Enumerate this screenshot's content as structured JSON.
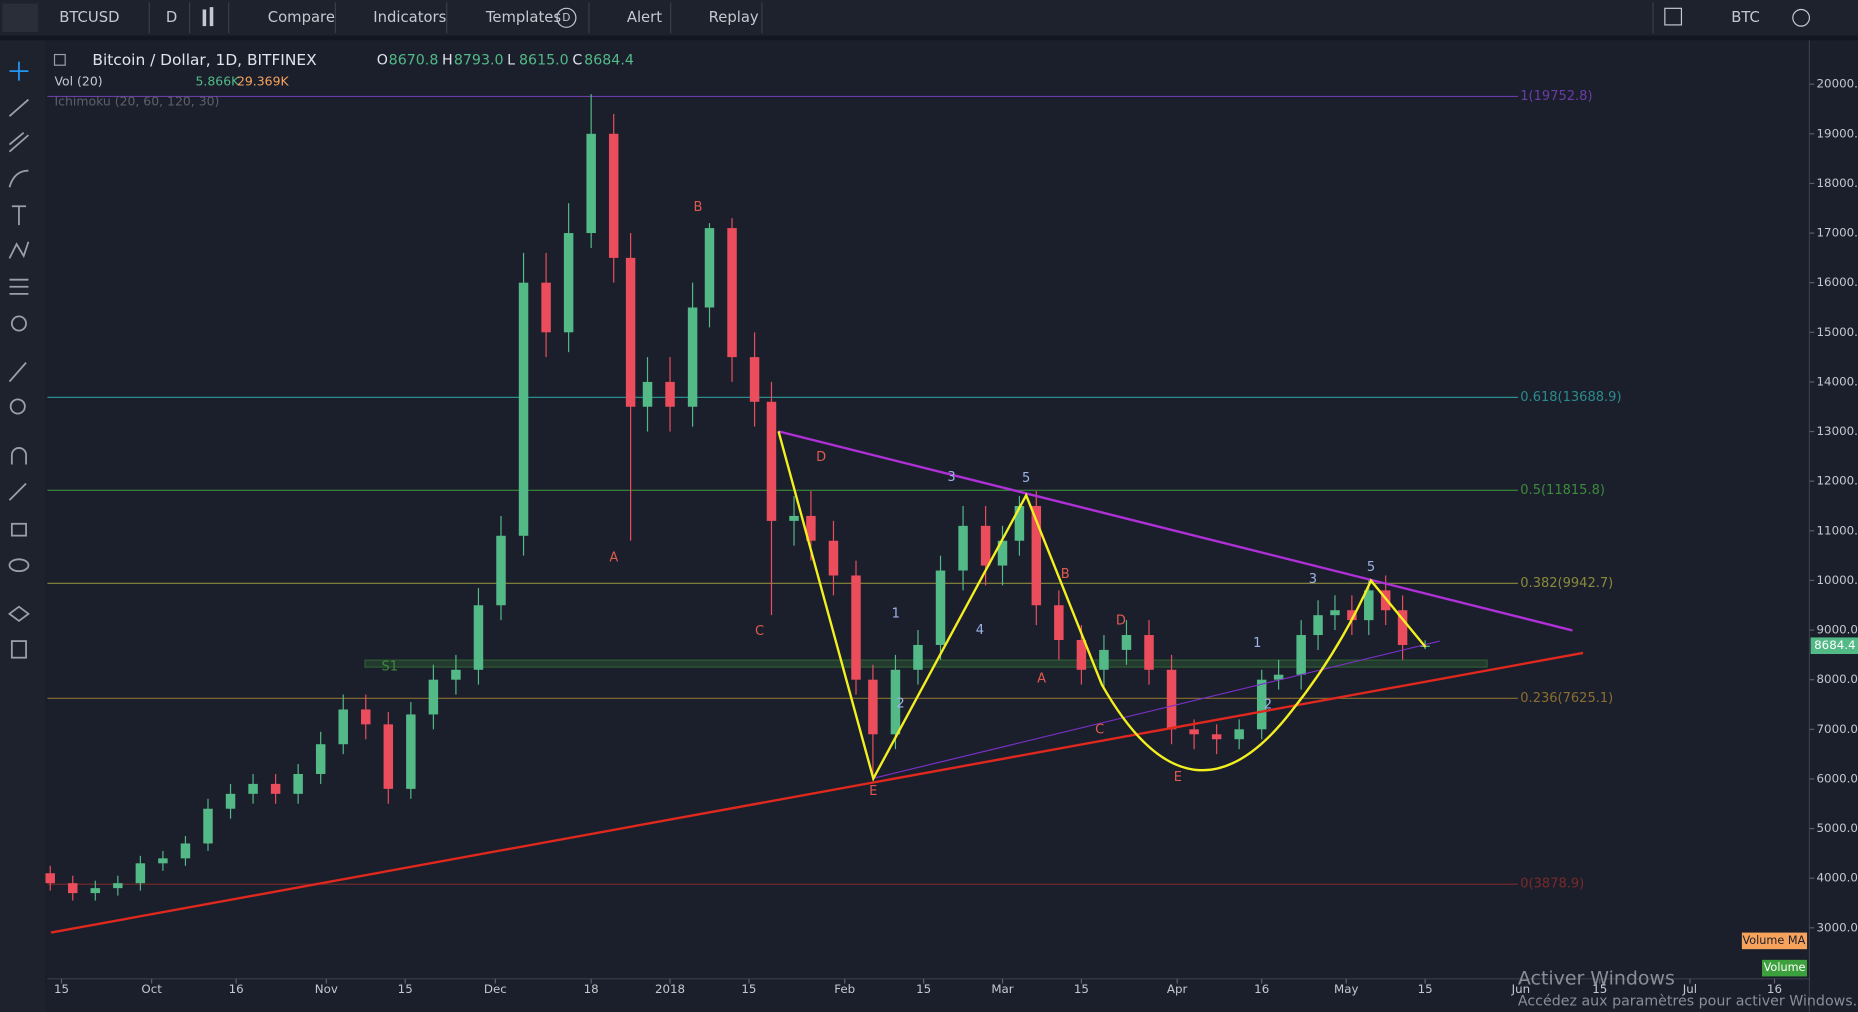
{
  "toolbar": {
    "symbol": "BTCUSD",
    "interval": "D",
    "compare": "Compare",
    "indicators": "Indicators",
    "templates": "Templates",
    "templates_badge": "D",
    "alert": "Alert",
    "replay": "Replay",
    "currency": "BTC"
  },
  "legend": {
    "title": "Bitcoin / Dollar, 1D, BITFINEX",
    "ohlc": [
      {
        "label": "O",
        "value": "8670.8"
      },
      {
        "label": "H",
        "value": "8793.0"
      },
      {
        "label": "L",
        "value": "8615.0"
      },
      {
        "label": "C",
        "value": "8684.4"
      }
    ],
    "volume": "Vol (20)",
    "volume_values": [
      "5.866K",
      "29.369K"
    ],
    "ichimoku": "Ichimoku (20, 60, 120, 30)"
  },
  "chart_data": {
    "type": "candlestick",
    "x": [
      -2,
      2,
      6,
      10,
      14,
      18,
      22,
      26,
      30,
      34,
      38,
      42,
      46,
      50,
      54,
      58,
      62,
      66,
      70,
      74,
      78,
      82,
      86,
      90,
      94,
      98,
      101,
      104,
      108,
      112,
      115,
      119,
      123,
      126,
      130,
      133,
      137,
      141,
      144,
      148,
      152,
      156,
      160,
      164,
      167,
      170,
      173,
      177,
      181,
      185,
      189,
      193,
      197,
      201,
      205,
      209,
      213,
      216,
      220,
      223,
      226,
      229,
      232,
      235,
      238,
      242
    ],
    "open": [
      4100,
      3900,
      3700,
      3800,
      3900,
      4300,
      4400,
      4700,
      5400,
      5700,
      5900,
      5700,
      6100,
      6700,
      7400,
      7100,
      5800,
      7300,
      8000,
      8200,
      9500,
      10900,
      16000,
      15000,
      17000,
      19000,
      16500,
      13500,
      14000,
      13500,
      15500,
      17100,
      14500,
      13600,
      11200,
      11300,
      10800,
      10100,
      8000,
      6900,
      8200,
      8700,
      10200,
      11100,
      10300,
      10800,
      11500,
      9500,
      8800,
      8200,
      8600,
      8900,
      8200,
      7000,
      6900,
      6800,
      7000,
      8000,
      8100,
      8900,
      9300,
      9400,
      9200,
      9800,
      9400,
      8670.8
    ],
    "high": [
      4250,
      4050,
      3950,
      4050,
      4450,
      4550,
      4850,
      5600,
      5900,
      6100,
      6100,
      6300,
      6950,
      7700,
      7700,
      7350,
      7550,
      8300,
      8500,
      9850,
      11300,
      16600,
      16600,
      17600,
      19800,
      19400,
      17000,
      14500,
      14500,
      16000,
      17200,
      17300,
      15000,
      14000,
      11700,
      11800,
      11200,
      10400,
      8300,
      8500,
      9000,
      10500,
      11500,
      11500,
      11100,
      11700,
      11800,
      9800,
      9100,
      8900,
      9200,
      9200,
      8500,
      7200,
      7100,
      7200,
      8200,
      8400,
      9200,
      9600,
      9700,
      9700,
      10000,
      10100,
      9700,
      8793
    ],
    "low": [
      3750,
      3550,
      3550,
      3650,
      3750,
      4150,
      4250,
      4550,
      5200,
      5500,
      5500,
      5500,
      5900,
      6500,
      6800,
      5500,
      5600,
      7000,
      7700,
      7900,
      9200,
      10500,
      14500,
      14600,
      16700,
      16000,
      10800,
      13000,
      13000,
      13100,
      15100,
      14000,
      13100,
      9300,
      10700,
      10400,
      9700,
      7700,
      6000,
      6600,
      7900,
      8400,
      9800,
      9900,
      9900,
      10500,
      9100,
      8400,
      7900,
      7800,
      8300,
      7900,
      6700,
      6600,
      6500,
      6600,
      6800,
      7800,
      7800,
      8600,
      9000,
      8900,
      8900,
      9100,
      8400,
      8615
    ],
    "close": [
      3900,
      3700,
      3800,
      3900,
      4300,
      4400,
      4700,
      5400,
      5700,
      5900,
      5700,
      6100,
      6700,
      7400,
      7100,
      5800,
      7300,
      8000,
      8200,
      9500,
      10900,
      16000,
      15000,
      17000,
      19000,
      16500,
      13500,
      14000,
      13500,
      15500,
      17100,
      14500,
      13600,
      11200,
      11300,
      10800,
      10100,
      8000,
      6900,
      8200,
      8700,
      10200,
      11100,
      10300,
      10800,
      11500,
      9500,
      8800,
      8200,
      8600,
      8900,
      8200,
      7000,
      6900,
      6800,
      7000,
      8000,
      8100,
      8900,
      9300,
      9400,
      9200,
      9800,
      9400,
      8700,
      8684.4
    ],
    "up_color": "#53b987",
    "down_color": "#eb4d5c",
    "xlim": [
      -2.5,
      310.2
    ],
    "ylim": [
      1973,
      20836
    ],
    "xticks": [
      {
        "value": 0,
        "label": "15"
      },
      {
        "value": 16,
        "label": "Oct"
      },
      {
        "value": 31,
        "label": "16"
      },
      {
        "value": 47,
        "label": "Nov"
      },
      {
        "value": 61,
        "label": "15"
      },
      {
        "value": 77,
        "label": "Dec"
      },
      {
        "value": 94,
        "label": "18"
      },
      {
        "value": 108,
        "label": "2018"
      },
      {
        "value": 122,
        "label": "15"
      },
      {
        "value": 139,
        "label": "Feb"
      },
      {
        "value": 153,
        "label": "15"
      },
      {
        "value": 167,
        "label": "Mar"
      },
      {
        "value": 181,
        "label": "15"
      },
      {
        "value": 198,
        "label": "Apr"
      },
      {
        "value": 213,
        "label": "16"
      },
      {
        "value": 228,
        "label": "May"
      },
      {
        "value": 242,
        "label": "15"
      },
      {
        "value": 259,
        "label": "Jun"
      },
      {
        "value": 273,
        "label": "15"
      },
      {
        "value": 289,
        "label": "Jul"
      },
      {
        "value": 304,
        "label": "16"
      }
    ],
    "yticks": [
      {
        "value": 3000,
        "label": "3000.0"
      },
      {
        "value": 4000,
        "label": "4000.0"
      },
      {
        "value": 5000,
        "label": "5000.0"
      },
      {
        "value": 6000,
        "label": "6000.0"
      },
      {
        "value": 7000,
        "label": "7000.0"
      },
      {
        "value": 8000,
        "label": "8000.0"
      },
      {
        "value": 9000,
        "label": "9000.0"
      },
      {
        "value": 10000,
        "label": "10000.0"
      },
      {
        "value": 11000,
        "label": "11000.0"
      },
      {
        "value": 12000,
        "label": "12000.0"
      },
      {
        "value": 13000,
        "label": "13000.0"
      },
      {
        "value": 14000,
        "label": "14000.0"
      },
      {
        "value": 15000,
        "label": "15000.0"
      },
      {
        "value": 16000,
        "label": "16000.0"
      },
      {
        "value": 17000,
        "label": "17000.0"
      },
      {
        "value": 18000,
        "label": "18000.0"
      },
      {
        "value": 19000,
        "label": "19000.0"
      },
      {
        "value": 20000,
        "label": "20000.0"
      }
    ],
    "last_price": {
      "value": 8684.4,
      "label": "8684.4"
    },
    "fib_levels": [
      {
        "value": 19752.8,
        "label": "1(19752.8)",
        "color": "#6a3ca8"
      },
      {
        "value": 13688.9,
        "label": "0.618(13688.9)",
        "color": "#2a8c8c"
      },
      {
        "value": 11815.8,
        "label": "0.5(11815.8)",
        "color": "#3d8a3d"
      },
      {
        "value": 9942.7,
        "label": "0.382(9942.7)",
        "color": "#8a8a3a"
      },
      {
        "value": 7625.1,
        "label": "0.236(7625.1)",
        "color": "#8a6e30"
      },
      {
        "value": 3878.9,
        "label": "0(3878.9)",
        "color": "#7a2a2a"
      }
    ],
    "support_label": "S1",
    "wave_labels": [
      "A",
      "B",
      "C",
      "D",
      "E",
      "1",
      "2",
      "3",
      "4",
      "5",
      "B",
      "A",
      "D",
      "C",
      "E",
      "1",
      "2",
      "3",
      "5"
    ],
    "badges": [
      "Volume MA",
      "Volume"
    ]
  },
  "watermark": {
    "title": "Activer Windows",
    "text": "Accédez aux paramètres pour activer Windows."
  }
}
